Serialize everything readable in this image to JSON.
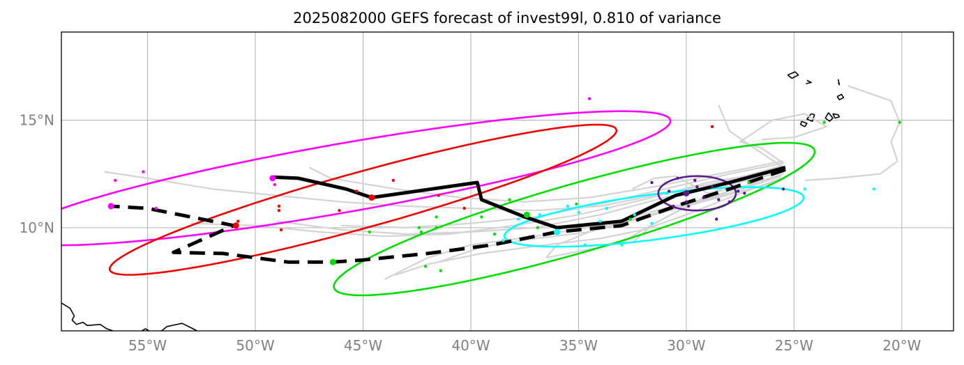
{
  "title": "2025082000 GEFS forecast of invest99l, 0.810 of variance",
  "x_ticks": [
    {
      "lon": -55,
      "label": "55°W"
    },
    {
      "lon": -50,
      "label": "50°W"
    },
    {
      "lon": -45,
      "label": "45°W"
    },
    {
      "lon": -40,
      "label": "40°W"
    },
    {
      "lon": -35,
      "label": "35°W"
    },
    {
      "lon": -30,
      "label": "30°W"
    },
    {
      "lon": -25,
      "label": "25°W"
    },
    {
      "lon": -20,
      "label": "20°W"
    }
  ],
  "y_ticks": [
    {
      "lat": 15,
      "label": "15°N"
    },
    {
      "lat": 10,
      "label": "10°N"
    }
  ],
  "extent": {
    "lon_min": -59,
    "lon_max": -17.6,
    "lat_min": 5.2,
    "lat_max": 19.1
  },
  "colors": {
    "member": "#d3d3d3",
    "mean": "#000000",
    "magenta": "#ff00ff",
    "red": "#ee0000",
    "green": "#00dd00",
    "cyan": "#00ffff",
    "purple": "#5a1a8a",
    "coast": "#000000"
  },
  "mean_tracks": [
    {
      "name": "solid",
      "dashed": false,
      "points": [
        [
          -25.4,
          12.8
        ],
        [
          -28,
          12.1
        ],
        [
          -30.5,
          11.5
        ],
        [
          -33,
          10.3
        ],
        [
          -36,
          10.0
        ],
        [
          -37.5,
          10.5
        ],
        [
          -39.5,
          11.3
        ],
        [
          -39.7,
          12.1
        ],
        [
          -44.6,
          11.4
        ],
        [
          -45.8,
          11.8
        ],
        [
          -48,
          12.3
        ],
        [
          -49.2,
          12.35
        ]
      ]
    },
    {
      "name": "dashed",
      "dashed": true,
      "points": [
        [
          -25.4,
          12.7
        ],
        [
          -28,
          11.8
        ],
        [
          -30.5,
          11.0
        ],
        [
          -33,
          10.1
        ],
        [
          -36,
          9.8
        ],
        [
          -39,
          9.2
        ],
        [
          -42,
          8.8
        ],
        [
          -45,
          8.5
        ],
        [
          -46.4,
          8.4
        ],
        [
          -48.5,
          8.4
        ],
        [
          -51.5,
          8.8
        ],
        [
          -53.8,
          8.85
        ],
        [
          -52.8,
          9.3
        ],
        [
          -51,
          10.1
        ],
        [
          -53,
          10.5
        ],
        [
          -55,
          10.9
        ],
        [
          -56.7,
          11.0
        ]
      ]
    }
  ],
  "members": [
    [
      [
        -25.5,
        13.0
      ],
      [
        -28,
        12.5
      ],
      [
        -31,
        11.8
      ],
      [
        -34,
        11.1
      ],
      [
        -37,
        10.5
      ],
      [
        -40,
        10.2
      ],
      [
        -43,
        10.0
      ],
      [
        -46,
        10.1
      ]
    ],
    [
      [
        -25.5,
        12.6
      ],
      [
        -28,
        12.0
      ],
      [
        -31,
        11.4
      ],
      [
        -34,
        10.6
      ],
      [
        -37,
        10.0
      ],
      [
        -40,
        9.8
      ],
      [
        -43,
        9.7
      ],
      [
        -46,
        9.9
      ],
      [
        -49,
        10.3
      ]
    ],
    [
      [
        -25.6,
        12.4
      ],
      [
        -28,
        11.6
      ],
      [
        -31,
        10.9
      ],
      [
        -34,
        10.1
      ],
      [
        -37,
        9.6
      ],
      [
        -40,
        9.2
      ],
      [
        -42,
        8.6
      ],
      [
        -44,
        7.6
      ]
    ],
    [
      [
        -25.6,
        12.2
      ],
      [
        -28.5,
        11.4
      ],
      [
        -31.5,
        10.6
      ],
      [
        -34.5,
        9.8
      ],
      [
        -37,
        9.5
      ],
      [
        -39.5,
        9.1
      ],
      [
        -41.5,
        8.4
      ]
    ],
    [
      [
        -25.5,
        12.9
      ],
      [
        -28,
        12.2
      ],
      [
        -31,
        11.6
      ],
      [
        -34,
        11.0
      ],
      [
        -37,
        10.8
      ],
      [
        -40,
        10.9
      ],
      [
        -43,
        11.0
      ],
      [
        -46,
        11.2
      ],
      [
        -49,
        11.5
      ],
      [
        -52,
        11.8
      ],
      [
        -55,
        12.3
      ],
      [
        -57,
        12.6
      ]
    ],
    [
      [
        -25.5,
        13.1
      ],
      [
        -28.5,
        12.5
      ],
      [
        -31.5,
        11.9
      ],
      [
        -34.5,
        11.4
      ],
      [
        -37.5,
        11.2
      ],
      [
        -40.5,
        11.4
      ],
      [
        -43.5,
        11.8
      ],
      [
        -46.5,
        12.3
      ],
      [
        -47.5,
        12.8
      ]
    ],
    [
      [
        -25.5,
        12.5
      ],
      [
        -28,
        11.7
      ],
      [
        -31,
        10.8
      ],
      [
        -34,
        10.0
      ],
      [
        -36,
        9.2
      ],
      [
        -36.5,
        8.6
      ]
    ],
    [
      [
        -25.4,
        12.3
      ],
      [
        -27,
        11.8
      ],
      [
        -29.5,
        11.2
      ],
      [
        -31.5,
        10.2
      ],
      [
        -32.5,
        9.3
      ]
    ],
    [
      [
        -25.5,
        12.7
      ],
      [
        -29,
        12.1
      ],
      [
        -32,
        11.3
      ],
      [
        -35,
        10.6
      ],
      [
        -38,
        10.1
      ],
      [
        -41,
        9.7
      ],
      [
        -44,
        9.6
      ],
      [
        -47,
        9.8
      ],
      [
        -50,
        10.1
      ],
      [
        -53,
        10.2
      ]
    ],
    [
      [
        -25.5,
        12.6
      ],
      [
        -28,
        12.0
      ],
      [
        -30,
        11.0
      ],
      [
        -32,
        9.9
      ],
      [
        -33,
        9.3
      ],
      [
        -34.5,
        9.0
      ],
      [
        -36.5,
        8.6
      ]
    ],
    [
      [
        -25.5,
        12.8
      ],
      [
        -27,
        13.8
      ],
      [
        -28,
        14.5
      ],
      [
        -28.5,
        15.7
      ]
    ],
    [
      [
        -24.5,
        12.2
      ],
      [
        -23,
        12.3
      ],
      [
        -21,
        12.5
      ],
      [
        -20.2,
        13.1
      ],
      [
        -20.5,
        14.0
      ],
      [
        -20.1,
        14.9
      ],
      [
        -20.5,
        15.9
      ],
      [
        -22.5,
        16.6
      ]
    ],
    [
      [
        -25.5,
        13.0
      ],
      [
        -26.5,
        13.7
      ],
      [
        -27.5,
        14.0
      ],
      [
        -26,
        15.0
      ],
      [
        -24.5,
        15.3
      ],
      [
        -23.5,
        14.7
      ],
      [
        -25,
        14.2
      ],
      [
        -26.5,
        14.1
      ]
    ],
    [
      [
        -25.5,
        12.5
      ],
      [
        -27,
        12.0
      ],
      [
        -29,
        11.6
      ],
      [
        -30.5,
        12.4
      ],
      [
        -31.5,
        12.3
      ],
      [
        -32.5,
        11.8
      ]
    ],
    [
      [
        -25.6,
        12.3
      ],
      [
        -28,
        11.4
      ],
      [
        -30,
        10.6
      ],
      [
        -32,
        9.9
      ],
      [
        -34,
        9.5
      ],
      [
        -36.5,
        9.2
      ],
      [
        -39.5,
        8.8
      ],
      [
        -42,
        8.3
      ],
      [
        -43.5,
        7.8
      ]
    ]
  ],
  "ellipses": [
    {
      "name": "magenta",
      "center": [
        -46.0,
        12.3
      ],
      "rx": 15.5,
      "ry": 1.6,
      "angle": 10.0
    },
    {
      "name": "red",
      "center": [
        -45.0,
        11.3
      ],
      "rx": 12.2,
      "ry": 1.3,
      "angle": 15.5
    },
    {
      "name": "green",
      "center": [
        -35.2,
        10.4
      ],
      "rx": 11.6,
      "ry": 1.6,
      "angle": 16.0
    },
    {
      "name": "cyan",
      "center": [
        -31.5,
        10.5
      ],
      "rx": 7.0,
      "ry": 1.05,
      "angle": 7.5
    },
    {
      "name": "purple",
      "center": [
        -29.5,
        11.6
      ],
      "rx": 1.8,
      "ry": 0.8,
      "angle": 0
    }
  ],
  "points": [
    {
      "name": "magenta",
      "big": [
        [
          -56.7,
          11.0
        ],
        [
          -49.2,
          12.3
        ]
      ],
      "small": [
        [
          -56.5,
          12.2
        ],
        [
          -55.2,
          12.6
        ],
        [
          -54.6,
          10.9
        ],
        [
          -49.1,
          12.0
        ],
        [
          -34.5,
          16.0
        ]
      ]
    },
    {
      "name": "red",
      "big": [
        [
          -50.9,
          10.1
        ],
        [
          -44.6,
          11.4
        ]
      ],
      "small": [
        [
          -50.8,
          10.3
        ],
        [
          -48.9,
          10.8
        ],
        [
          -48.8,
          9.9
        ],
        [
          -48.9,
          11.0
        ],
        [
          -46.1,
          10.8
        ],
        [
          -45.3,
          11.7
        ],
        [
          -43.6,
          12.2
        ],
        [
          -41.5,
          11.5
        ],
        [
          -40.3,
          10.9
        ],
        [
          -28.8,
          14.7
        ]
      ]
    },
    {
      "name": "green",
      "big": [
        [
          -46.4,
          8.4
        ],
        [
          -37.4,
          10.6
        ]
      ],
      "small": [
        [
          -44.7,
          9.8
        ],
        [
          -42.4,
          10.0
        ],
        [
          -42.3,
          9.8
        ],
        [
          -41.6,
          10.5
        ],
        [
          -41.6,
          10.0
        ],
        [
          -42.1,
          8.2
        ],
        [
          -41.4,
          8.0
        ],
        [
          -39.5,
          10.5
        ],
        [
          -38.9,
          9.7
        ],
        [
          -38.2,
          11.3
        ],
        [
          -36.9,
          10.0
        ],
        [
          -35.1,
          11.1
        ],
        [
          -32.6,
          10.4
        ],
        [
          -27.1,
          12.1
        ],
        [
          -20.1,
          14.9
        ],
        [
          -23.6,
          14.9
        ]
      ]
    },
    {
      "name": "cyan",
      "big": [
        [
          -36.0,
          9.8
        ]
      ],
      "small": [
        [
          -38.5,
          9.4
        ],
        [
          -37.8,
          10.4
        ],
        [
          -36.8,
          10.6
        ],
        [
          -35.5,
          11.0
        ],
        [
          -35.0,
          10.7
        ],
        [
          -34.7,
          9.2
        ],
        [
          -34.0,
          10.3
        ],
        [
          -33.0,
          9.2
        ],
        [
          -32.4,
          10.6
        ],
        [
          -31.6,
          10.2
        ],
        [
          -30.9,
          11.6
        ],
        [
          -24.5,
          11.8
        ],
        [
          -21.3,
          11.8
        ],
        [
          -33.7,
          10.9
        ]
      ]
    },
    {
      "name": "purple",
      "big": [
        [
          -30.0,
          11.6
        ]
      ],
      "small": [
        [
          -31.6,
          12.1
        ],
        [
          -30.8,
          11.7
        ],
        [
          -30.4,
          12.3
        ],
        [
          -30.0,
          11.2
        ],
        [
          -29.6,
          12.2
        ],
        [
          -29.2,
          11.4
        ],
        [
          -28.8,
          11.9
        ],
        [
          -28.5,
          11.3
        ],
        [
          -28.0,
          11.2
        ],
        [
          -27.6,
          11.7
        ],
        [
          -27.3,
          11.6
        ],
        [
          -29.9,
          11.0
        ],
        [
          -30.6,
          11.0
        ],
        [
          -25.5,
          11.8
        ],
        [
          -28.6,
          10.4
        ],
        [
          -29.5,
          11.9
        ]
      ]
    }
  ],
  "coastlines": [
    [
      [
        -59.0,
        6.5
      ],
      [
        -58.6,
        6.25
      ],
      [
        -58.4,
        5.9
      ],
      [
        -58.5,
        5.7
      ],
      [
        -58.3,
        5.5
      ],
      [
        -58.0,
        5.6
      ],
      [
        -57.8,
        5.45
      ],
      [
        -57.2,
        5.5
      ],
      [
        -56.9,
        5.3
      ],
      [
        -56.6,
        5.2
      ]
    ],
    [
      [
        -56.7,
        5.0
      ],
      [
        -56.2,
        5.15
      ],
      [
        -55.6,
        5.0
      ],
      [
        -55.1,
        5.3
      ],
      [
        -54.6,
        5.0
      ],
      [
        -54.1,
        5.4
      ],
      [
        -53.4,
        5.55
      ],
      [
        -52.9,
        5.3
      ],
      [
        -52.5,
        5.1
      ]
    ],
    [
      [
        -25.3,
        17.1
      ],
      [
        -24.95,
        17.25
      ],
      [
        -24.8,
        17.1
      ],
      [
        -25.1,
        16.95
      ],
      [
        -25.3,
        17.1
      ]
    ],
    [
      [
        -24.4,
        16.85
      ],
      [
        -24.2,
        16.75
      ],
      [
        -24.45,
        16.7
      ]
    ],
    [
      [
        -22.95,
        16.9
      ],
      [
        -22.9,
        16.65
      ],
      [
        -22.95,
        16.75
      ]
    ],
    [
      [
        -23.0,
        16.1
      ],
      [
        -22.8,
        16.2
      ],
      [
        -22.7,
        16.05
      ],
      [
        -22.9,
        15.95
      ],
      [
        -23.0,
        16.1
      ]
    ],
    [
      [
        -24.2,
        15.3
      ],
      [
        -24.05,
        15.25
      ],
      [
        -24.15,
        14.95
      ],
      [
        -24.4,
        15.05
      ],
      [
        -24.2,
        15.3
      ]
    ],
    [
      [
        -23.4,
        15.35
      ],
      [
        -23.2,
        15.1
      ],
      [
        -23.35,
        14.95
      ],
      [
        -23.55,
        15.1
      ],
      [
        -23.4,
        15.35
      ]
    ],
    [
      [
        -23.2,
        15.3
      ],
      [
        -22.95,
        15.25
      ],
      [
        -22.9,
        15.15
      ],
      [
        -23.1,
        15.1
      ],
      [
        -23.2,
        15.3
      ]
    ],
    [
      [
        -24.65,
        14.95
      ],
      [
        -24.4,
        14.85
      ],
      [
        -24.5,
        14.7
      ],
      [
        -24.7,
        14.8
      ],
      [
        -24.65,
        14.95
      ]
    ]
  ]
}
